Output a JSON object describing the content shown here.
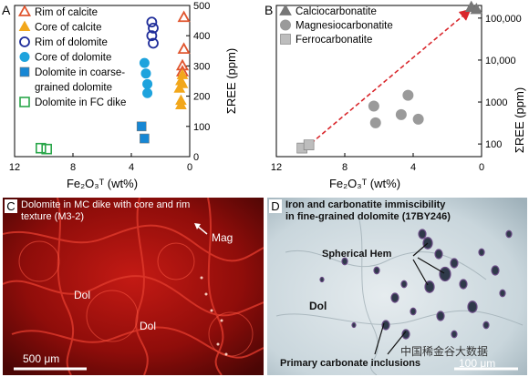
{
  "panels": {
    "A": {
      "letter": "A",
      "x_label": "Fe₂O₃ᵀ (wt%)",
      "y_label": "ΣREE (ppm)",
      "legend": [
        {
          "label": "Rim of calcite",
          "marker": "triangle-open",
          "color": "#e0552e"
        },
        {
          "label": "Core of calcite",
          "marker": "triangle-filled",
          "color": "#f2a71b"
        },
        {
          "label": "Rim of dolomite",
          "marker": "circle-open",
          "color": "#1f2d9a"
        },
        {
          "label": "Core of dolomite",
          "marker": "circle-filled",
          "color": "#1ea3dd"
        },
        {
          "label": "Dolomite in coarse-",
          "marker": "square-filled",
          "color": "#1787d4"
        },
        {
          "label": "grained dolomite",
          "marker": "none",
          "color": ""
        },
        {
          "label": "Dolomite in FC dike",
          "marker": "square-open",
          "color": "#2aa64a"
        }
      ]
    },
    "B": {
      "letter": "B",
      "x_label": "Fe₂O₃ᵀ (wt%)",
      "y_label": "ΣREE (ppm)",
      "legend": [
        {
          "label": "Calciocarbonatite",
          "marker": "triangle-filled",
          "color": "#777777"
        },
        {
          "label": "Magnesiocarbonatite",
          "marker": "circle-filled",
          "color": "#9a9a9a"
        },
        {
          "label": "Ferrocarbonatite",
          "marker": "square-filled",
          "color": "#bdbdbd"
        }
      ]
    },
    "C": {
      "letter": "C",
      "caption_line1": "Dolomite in MC dike with core and rim",
      "caption_line2": "texture (M3-2)",
      "label_mag": "Mag",
      "label_dol1": "Dol",
      "label_dol2": "Dol",
      "scale_bar": "500 μm"
    },
    "D": {
      "letter": "D",
      "caption_line1": "Iron and carbonatite immiscibility",
      "caption_line2": "in fine-grained dolomite (17BY246)",
      "label_hem": "Spherical Hem",
      "label_dol": "Dol",
      "label_inclusions": "Primary carbonate inclusions",
      "scale_bar": "100 μm",
      "watermark": "中国稀金谷大数据"
    }
  },
  "chart_data": [
    {
      "panel": "A",
      "type": "scatter",
      "xlabel": "Fe₂O₃ᵀ (wt%)",
      "ylabel": "ΣREE (ppm)",
      "xlim": [
        12,
        0
      ],
      "ylim": [
        0,
        500
      ],
      "x_ticks": [
        12,
        8,
        4,
        0
      ],
      "y_ticks": [
        0,
        100,
        200,
        300,
        400,
        500
      ],
      "y_axis_side": "right",
      "series": [
        {
          "name": "Rim of calcite",
          "marker": "triangle-open",
          "color": "#e0552e",
          "x": [
            0.4,
            0.4,
            0.5,
            0.5
          ],
          "y": [
            460,
            355,
            300,
            280
          ]
        },
        {
          "name": "Core of calcite",
          "marker": "triangle-filled",
          "color": "#f2a71b",
          "x": [
            0.5,
            0.6,
            0.5,
            0.7,
            0.6,
            0.6
          ],
          "y": [
            270,
            250,
            240,
            225,
            185,
            170
          ]
        },
        {
          "name": "Rim of dolomite",
          "marker": "circle-open",
          "color": "#1f2d9a",
          "x": [
            2.6,
            2.5,
            2.6,
            2.5
          ],
          "y": [
            445,
            425,
            400,
            375
          ]
        },
        {
          "name": "Core of dolomite",
          "marker": "circle-filled",
          "color": "#1ea3dd",
          "x": [
            3.1,
            3.0,
            2.9,
            2.9
          ],
          "y": [
            310,
            275,
            240,
            210
          ]
        },
        {
          "name": "Dolomite in coarse-grained dolomite",
          "marker": "square-filled",
          "color": "#1787d4",
          "x": [
            3.3,
            3.1
          ],
          "y": [
            100,
            60
          ]
        },
        {
          "name": "Dolomite in FC dike",
          "marker": "square-open",
          "color": "#2aa64a",
          "x": [
            10.2,
            9.8
          ],
          "y": [
            28,
            25
          ]
        }
      ]
    },
    {
      "panel": "B",
      "type": "scatter",
      "xlabel": "Fe₂O₃ᵀ (wt%)",
      "ylabel": "ΣREE (ppm)",
      "xlim": [
        12,
        0
      ],
      "ylim": [
        50,
        200000
      ],
      "y_scale": "log",
      "x_ticks": [
        12,
        8,
        4,
        0
      ],
      "y_ticks": [
        100,
        1000,
        10000,
        100000
      ],
      "y_tick_labels": [
        "100",
        "1000",
        "10,000",
        "100,000"
      ],
      "y_axis_side": "right",
      "trend": "dashed red exponential curve with arrow",
      "series": [
        {
          "name": "Calciocarbonatite",
          "marker": "triangle-filled",
          "color": "#777777",
          "x": [
            0.6,
            0.3
          ],
          "y": [
            180000,
            160000
          ]
        },
        {
          "name": "Magnesiocarbonatite",
          "marker": "circle-filled",
          "color": "#9a9a9a",
          "x": [
            6.3,
            6.2,
            4.3,
            4.7,
            3.7
          ],
          "y": [
            800,
            320,
            1450,
            500,
            390
          ]
        },
        {
          "name": "Ferrocarbonatite",
          "marker": "square-filled",
          "color": "#bdbdbd",
          "x": [
            10.5,
            10.1
          ],
          "y": [
            80,
            95
          ]
        }
      ]
    }
  ]
}
